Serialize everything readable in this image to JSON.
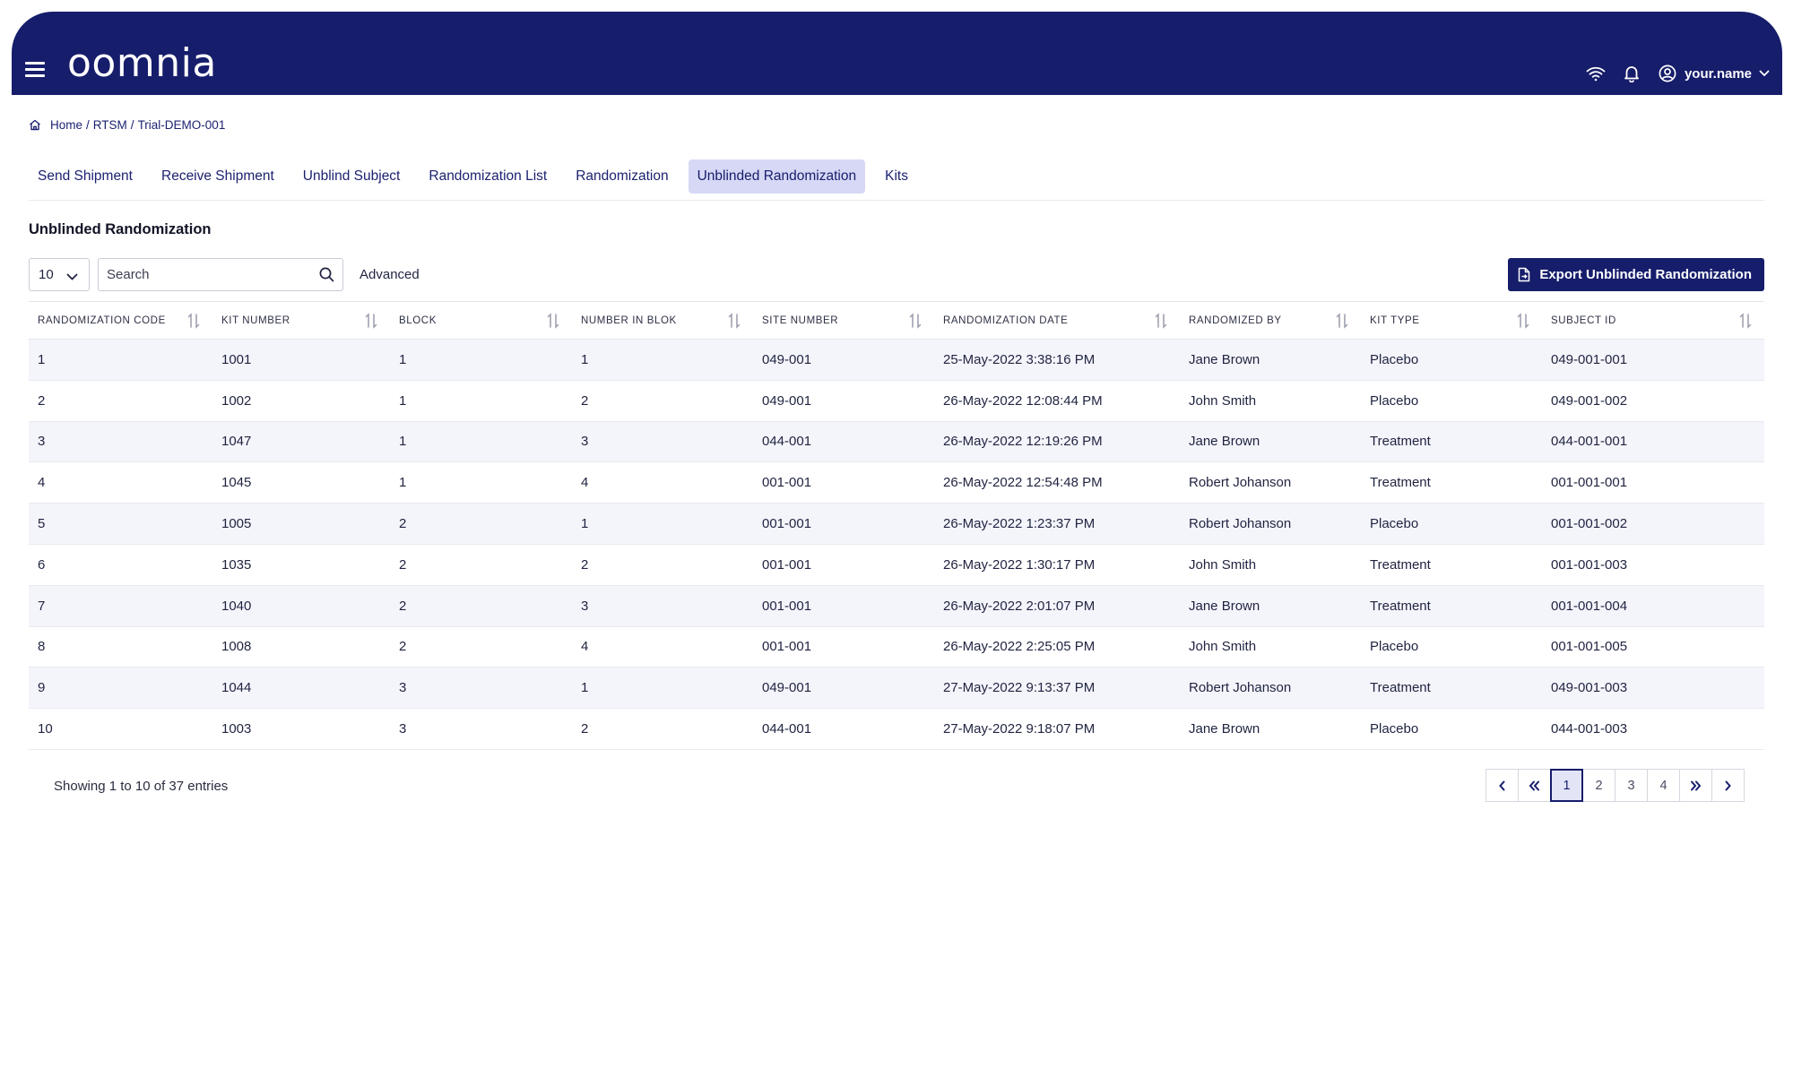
{
  "header": {
    "logo": "oomnia",
    "username": "your.name"
  },
  "breadcrumb": [
    "Home",
    "RTSM",
    "Trial-DEMO-001"
  ],
  "tabs": [
    {
      "label": "Send Shipment",
      "active": false
    },
    {
      "label": "Receive Shipment",
      "active": false
    },
    {
      "label": "Unblind Subject",
      "active": false
    },
    {
      "label": "Randomization List",
      "active": false
    },
    {
      "label": "Randomization",
      "active": false
    },
    {
      "label": "Unblinded Randomization",
      "active": true
    },
    {
      "label": "Kits",
      "active": false
    }
  ],
  "section_title": "Unblinded Randomization",
  "toolbar": {
    "page_size": "10",
    "search_placeholder": "Search",
    "advanced_label": "Advanced",
    "export_label": "Export Unblinded Randomization"
  },
  "table": {
    "columns": [
      "Randomization Code",
      "Kit Number",
      "Block",
      "Number in Blok",
      "Site Number",
      "Randomization Date",
      "Randomized By",
      "Kit Type",
      "Subject ID"
    ],
    "rows": [
      [
        "1",
        "1001",
        "1",
        "1",
        "049-001",
        "25-May-2022 3:38:16 PM",
        "Jane Brown",
        "Placebo",
        "049-001-001"
      ],
      [
        "2",
        "1002",
        "1",
        "2",
        "049-001",
        "26-May-2022 12:08:44 PM",
        "John Smith",
        "Placebo",
        "049-001-002"
      ],
      [
        "3",
        "1047",
        "1",
        "3",
        "044-001",
        "26-May-2022 12:19:26 PM",
        "Jane Brown",
        "Treatment",
        "044-001-001"
      ],
      [
        "4",
        "1045",
        "1",
        "4",
        "001-001",
        "26-May-2022 12:54:48 PM",
        "Robert Johanson",
        "Treatment",
        "001-001-001"
      ],
      [
        "5",
        "1005",
        "2",
        "1",
        "001-001",
        "26-May-2022 1:23:37 PM",
        "Robert Johanson",
        "Placebo",
        "001-001-002"
      ],
      [
        "6",
        "1035",
        "2",
        "2",
        "001-001",
        "26-May-2022 1:30:17 PM",
        "John Smith",
        "Treatment",
        "001-001-003"
      ],
      [
        "7",
        "1040",
        "2",
        "3",
        "001-001",
        "26-May-2022 2:01:07 PM",
        "Jane Brown",
        "Treatment",
        "001-001-004"
      ],
      [
        "8",
        "1008",
        "2",
        "4",
        "001-001",
        "26-May-2022 2:25:05 PM",
        "John Smith",
        "Placebo",
        "001-001-005"
      ],
      [
        "9",
        "1044",
        "3",
        "1",
        "049-001",
        "27-May-2022 9:13:37 PM",
        "Robert Johanson",
        "Treatment",
        "049-001-003"
      ],
      [
        "10",
        "1003",
        "3",
        "2",
        "044-001",
        "27-May-2022 9:18:07 PM",
        "Jane Brown",
        "Placebo",
        "044-001-003"
      ]
    ]
  },
  "footer": {
    "entries_text": "Showing 1 to 10 of 37 entries",
    "pages": [
      "1",
      "2",
      "3",
      "4"
    ],
    "current_page": "1"
  },
  "colors": {
    "brand": "#161d6b",
    "tab_active_bg": "#d6d8f5",
    "row_stripe": "#f4f5fb"
  },
  "icons": [
    "menu-icon",
    "wifi-icon",
    "bell-icon",
    "user-circle-icon",
    "chevron-down-icon",
    "home-icon",
    "search-icon",
    "document-export-icon",
    "sort-icon",
    "chevron-left-icon",
    "double-chevron-left-icon",
    "double-chevron-right-icon",
    "chevron-right-icon"
  ]
}
